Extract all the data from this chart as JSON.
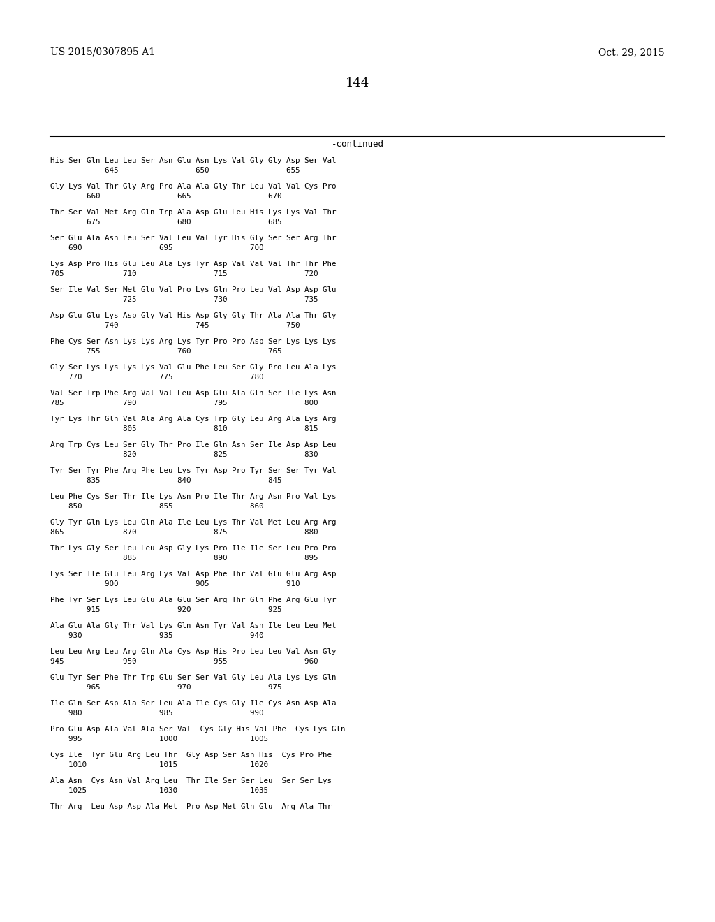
{
  "header_left": "US 2015/0307895 A1",
  "header_right": "Oct. 29, 2015",
  "page_number": "144",
  "continued_text": "-continued",
  "background_color": "#ffffff",
  "text_color": "#000000",
  "sequence_blocks": [
    {
      "aa": "His Ser Gln Leu Leu Ser Asn Glu Asn Lys Val Gly Gly Asp Ser Val",
      "nums": "            645                 650                 655"
    },
    {
      "aa": "Gly Lys Val Thr Gly Arg Pro Ala Ala Gly Thr Leu Val Val Cys Pro",
      "nums": "        660                 665                 670"
    },
    {
      "aa": "Thr Ser Val Met Arg Gln Trp Ala Asp Glu Leu His Lys Lys Val Thr",
      "nums": "        675                 680                 685"
    },
    {
      "aa": "Ser Glu Ala Asn Leu Ser Val Leu Val Tyr His Gly Ser Ser Arg Thr",
      "nums": "    690                 695                 700"
    },
    {
      "aa": "Lys Asp Pro His Glu Leu Ala Lys Tyr Asp Val Val Val Thr Thr Phe",
      "nums": "705             710                 715                 720"
    },
    {
      "aa": "Ser Ile Val Ser Met Glu Val Pro Lys Gln Pro Leu Val Asp Asp Glu",
      "nums": "                725                 730                 735"
    },
    {
      "aa": "Asp Glu Glu Lys Asp Gly Val His Asp Gly Gly Thr Ala Ala Thr Gly",
      "nums": "            740                 745                 750"
    },
    {
      "aa": "Phe Cys Ser Asn Lys Lys Arg Lys Tyr Pro Pro Asp Ser Lys Lys Lys",
      "nums": "        755                 760                 765"
    },
    {
      "aa": "Gly Ser Lys Lys Lys Lys Val Glu Phe Leu Ser Gly Pro Leu Ala Lys",
      "nums": "    770                 775                 780"
    },
    {
      "aa": "Val Ser Trp Phe Arg Val Val Leu Asp Glu Ala Gln Ser Ile Lys Asn",
      "nums": "785             790                 795                 800"
    },
    {
      "aa": "Tyr Lys Thr Gln Val Ala Arg Ala Cys Trp Gly Leu Arg Ala Lys Arg",
      "nums": "                805                 810                 815"
    },
    {
      "aa": "Arg Trp Cys Leu Ser Gly Thr Pro Ile Gln Asn Ser Ile Asp Asp Leu",
      "nums": "                820                 825                 830"
    },
    {
      "aa": "Tyr Ser Tyr Phe Arg Phe Leu Lys Tyr Asp Pro Tyr Ser Ser Tyr Val",
      "nums": "        835                 840                 845"
    },
    {
      "aa": "Leu Phe Cys Ser Thr Ile Lys Asn Pro Ile Thr Arg Asn Pro Val Lys",
      "nums": "    850                 855                 860"
    },
    {
      "aa": "Gly Tyr Gln Lys Leu Gln Ala Ile Leu Lys Thr Val Met Leu Arg Arg",
      "nums": "865             870                 875                 880"
    },
    {
      "aa": "Thr Lys Gly Ser Leu Leu Asp Gly Lys Pro Ile Ile Ser Leu Pro Pro",
      "nums": "                885                 890                 895"
    },
    {
      "aa": "Lys Ser Ile Glu Leu Arg Lys Val Asp Phe Thr Val Glu Glu Arg Asp",
      "nums": "            900                 905                 910"
    },
    {
      "aa": "Phe Tyr Ser Lys Leu Glu Ala Glu Ser Arg Thr Gln Phe Arg Glu Tyr",
      "nums": "        915                 920                 925"
    },
    {
      "aa": "Ala Glu Ala Gly Thr Val Lys Gln Asn Tyr Val Asn Ile Leu Leu Met",
      "nums": "    930                 935                 940"
    },
    {
      "aa": "Leu Leu Arg Leu Arg Gln Ala Cys Asp His Pro Leu Leu Val Asn Gly",
      "nums": "945             950                 955                 960"
    },
    {
      "aa": "Glu Tyr Ser Phe Thr Trp Glu Ser Ser Val Gly Leu Ala Lys Lys Gln",
      "nums": "        965                 970                 975"
    },
    {
      "aa": "Ile Gln Ser Asp Ala Ser Leu Ala Ile Cys Gly Ile Cys Asn Asp Ala",
      "nums": "    980                 985                 990"
    },
    {
      "aa": "Pro Glu Asp Ala Val Ala Ser Val  Cys Gly His Val Phe  Cys Lys Gln",
      "nums": "    995                 1000                1005"
    },
    {
      "aa": "Cys Ile  Tyr Glu Arg Leu Thr  Gly Asp Ser Asn His  Cys Pro Phe",
      "nums": "    1010                1015                1020"
    },
    {
      "aa": "Ala Asn  Cys Asn Val Arg Leu  Thr Ile Ser Ser Leu  Ser Ser Lys",
      "nums": "    1025                1030                1035"
    },
    {
      "aa": "Thr Arg  Leu Asp Asp Ala Met  Pro Asp Met Gln Glu  Arg Ala Thr",
      "nums": ""
    }
  ]
}
